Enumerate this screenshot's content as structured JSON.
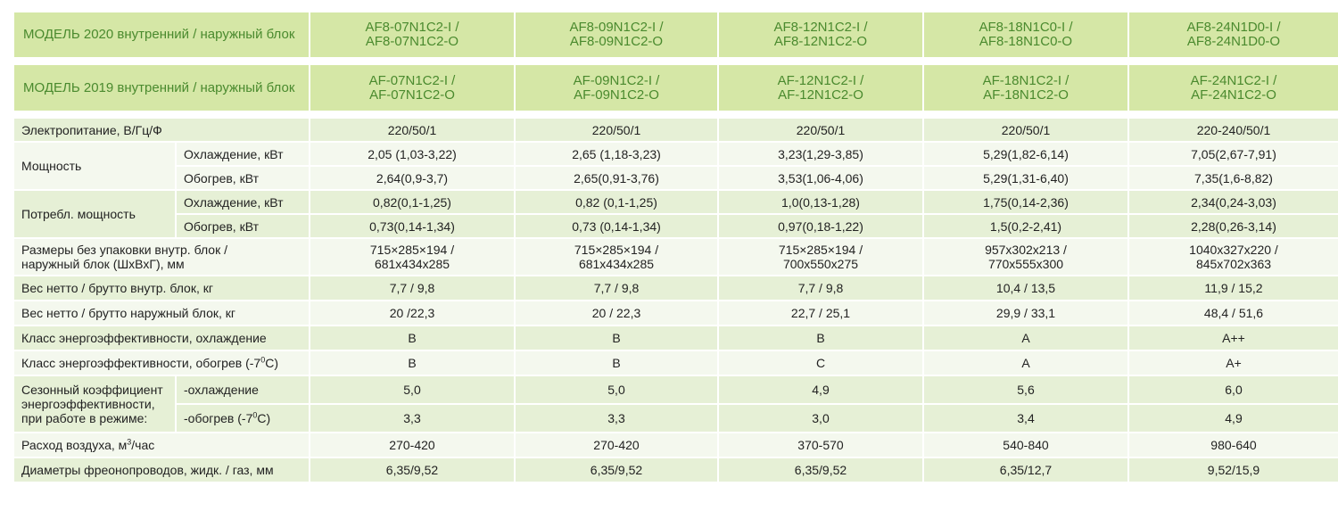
{
  "header2020": {
    "label": "МОДЕЛЬ 2020  внутренний  /  наружный блок",
    "models": [
      [
        "AF8-07N1C2-I /",
        "AF8-07N1C2-O"
      ],
      [
        "AF8-09N1C2-I /",
        "AF8-09N1C2-O"
      ],
      [
        "AF8-12N1C2-I /",
        "AF8-12N1C2-O"
      ],
      [
        "AF8-18N1C0-I /",
        "AF8-18N1C0-O"
      ],
      [
        "AF8-24N1D0-I /",
        "AF8-24N1D0-O"
      ]
    ]
  },
  "header2019": {
    "label": "МОДЕЛЬ 2019  внутренний  /  наружный блок",
    "models": [
      [
        "AF-07N1C2-I /",
        "AF-07N1C2-O"
      ],
      [
        "AF-09N1C2-I /",
        "AF-09N1C2-O"
      ],
      [
        "AF-12N1C2-I /",
        "AF-12N1C2-O"
      ],
      [
        "AF-18N1C2-I /",
        "AF-18N1C2-O"
      ],
      [
        "AF-24N1C2-I /",
        "AF-24N1C2-O"
      ]
    ]
  },
  "rows": {
    "power_supply": {
      "label": "Электропитание, В/Гц/Ф",
      "values": [
        "220/50/1",
        "220/50/1",
        "220/50/1",
        "220/50/1",
        "220-240/50/1"
      ]
    },
    "capacity": {
      "label": "Мощность",
      "cooling": {
        "label": "Охлаждение, кВт",
        "values": [
          "2,05 (1,03-3,22)",
          "2,65 (1,18-3,23)",
          "3,23(1,29-3,85)",
          "5,29(1,82-6,14)",
          "7,05(2,67-7,91)"
        ]
      },
      "heating": {
        "label": "Обогрев, кВт",
        "values": [
          "2,64(0,9-3,7)",
          "2,65(0,91-3,76)",
          "3,53(1,06-4,06)",
          "5,29(1,31-6,40)",
          "7,35(1,6-8,82)"
        ]
      }
    },
    "consumption": {
      "label": "Потребл. мощность",
      "cooling": {
        "label": "Охлаждение, кВт",
        "values": [
          "0,82(0,1-1,25)",
          "0,82 (0,1-1,25)",
          "1,0(0,13-1,28)",
          "1,75(0,14-2,36)",
          "2,34(0,24-3,03)"
        ]
      },
      "heating": {
        "label": "Обогрев, кВт",
        "values": [
          "0,73(0,14-1,34)",
          "0,73 (0,14-1,34)",
          "0,97(0,18-1,22)",
          "1,5(0,2-2,41)",
          "2,28(0,26-3,14)"
        ]
      }
    },
    "dimensions": {
      "label_line1": "Размеры без упаковки внутр. блок /",
      "label_line2": "наружный блок  (ШхВхГ), мм",
      "values": [
        [
          "715×285×194 /",
          "681x434x285"
        ],
        [
          "715×285×194 /",
          "681x434x285"
        ],
        [
          "715×285×194 /",
          "700x550x275"
        ],
        [
          "957x302x213 /",
          "770x555x300"
        ],
        [
          "1040x327x220 /",
          "845x702x363"
        ]
      ]
    },
    "weight_indoor": {
      "label": "Вес нетто / брутто внутр. блок, кг",
      "values": [
        "7,7 / 9,8",
        "7,7 / 9,8",
        "7,7 / 9,8",
        "10,4 / 13,5",
        "11,9 / 15,2"
      ]
    },
    "weight_outdoor": {
      "label": "Вес нетто / брутто наружный блок, кг",
      "values": [
        "20 /22,3",
        "20 / 22,3",
        "22,7 / 25,1",
        "29,9 / 33,1",
        "48,4 / 51,6"
      ]
    },
    "energy_class_cooling": {
      "label": "Класс энергоэффективности, охлаждение",
      "values": [
        "B",
        "B",
        "B",
        "A",
        "A++"
      ]
    },
    "energy_class_heating": {
      "label_main": "Класс энергоэффективности, обогрев  (-7",
      "label_sup": "0",
      "label_end": "C)",
      "values": [
        "B",
        "B",
        "C",
        "A",
        "A+"
      ]
    },
    "seasonal": {
      "label_line1": "Сезонный коэффициент",
      "label_line2": "энергоэффективности,",
      "label_line3": "при работе в режиме:",
      "cooling": {
        "label": "-охлаждение",
        "values": [
          "5,0",
          "5,0",
          "4,9",
          "5,6",
          "6,0"
        ]
      },
      "heating": {
        "label_main": "-обогрев  (-7",
        "label_sup": "0",
        "label_end": "C)",
        "values": [
          "3,3",
          "3,3",
          "3,0",
          "3,4",
          "4,9"
        ]
      }
    },
    "airflow": {
      "label_main": "Расход воздуха, м",
      "label_sup": "3",
      "label_end": "/час",
      "values": [
        "270-420",
        "270-420",
        "370-570",
        "540-840",
        "980-640"
      ]
    },
    "pipes": {
      "label": "Диаметры фреонопроводов, жидк. / газ, мм",
      "values": [
        "6,35/9,52",
        "6,35/9,52",
        "6,35/9,52",
        "6,35/12,7",
        "9,52/15,9"
      ]
    }
  }
}
